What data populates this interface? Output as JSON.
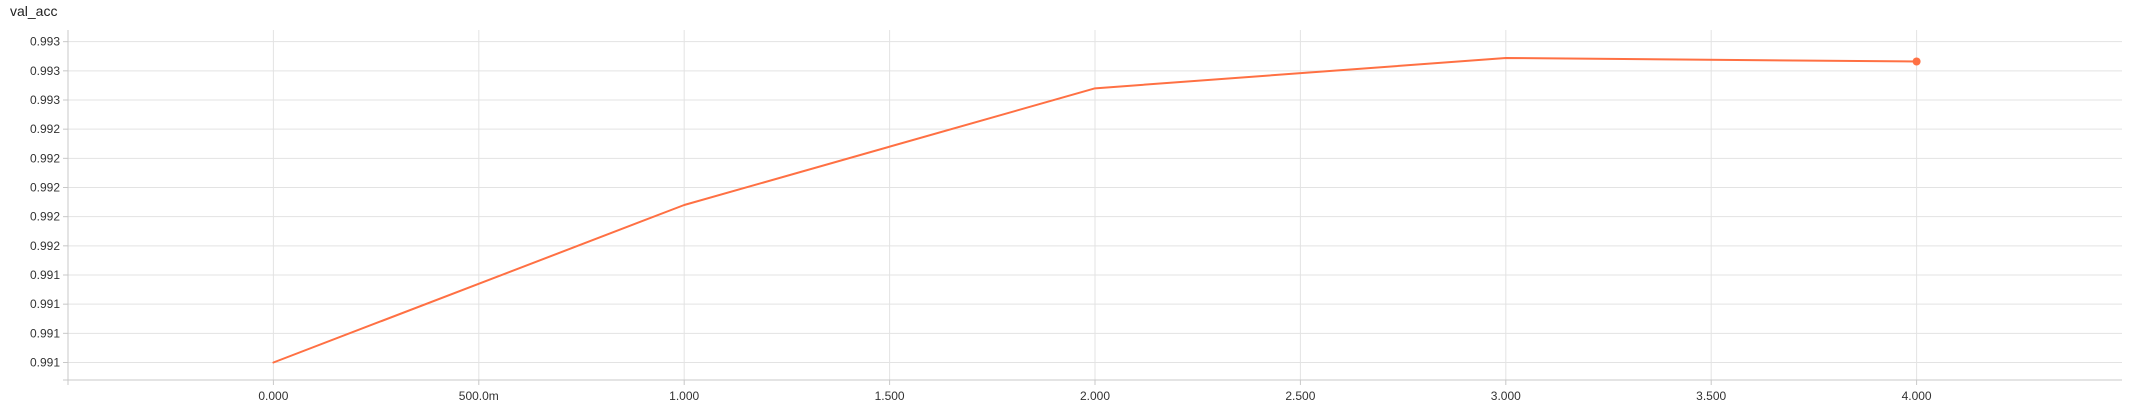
{
  "chart_title": "val_acc",
  "chart_data": {
    "type": "line",
    "title": "val_acc",
    "xlabel": "",
    "ylabel": "",
    "x": [
      0,
      1,
      2,
      3,
      4
    ],
    "series": [
      {
        "values": [
          0.9908,
          0.99215,
          0.99315,
          0.99341,
          0.99338
        ],
        "color": "#ff7043"
      }
    ],
    "xlim": [
      -0.5,
      4.5
    ],
    "ylim": [
      0.99065,
      0.99365
    ],
    "x_ticks": [
      0,
      0.5,
      1,
      1.5,
      2,
      2.5,
      3,
      3.5,
      4
    ],
    "x_tick_labels": [
      "0.000",
      "500.0m",
      "1.000",
      "1.500",
      "2.000",
      "2.500",
      "3.000",
      "3.500",
      "4.000"
    ],
    "y_ticks": [
      0.9908,
      0.99105,
      0.9913,
      0.99155,
      0.9918,
      0.99205,
      0.9923,
      0.99255,
      0.9928,
      0.99305,
      0.9933,
      0.99355
    ],
    "y_tick_labels": [
      "0.991",
      "0.991",
      "0.991",
      "0.991",
      "0.992",
      "0.992",
      "0.992",
      "0.992",
      "0.992",
      "0.993",
      "0.993",
      "0.993"
    ],
    "grid": true,
    "legend": "none",
    "last_point_marker": true
  }
}
